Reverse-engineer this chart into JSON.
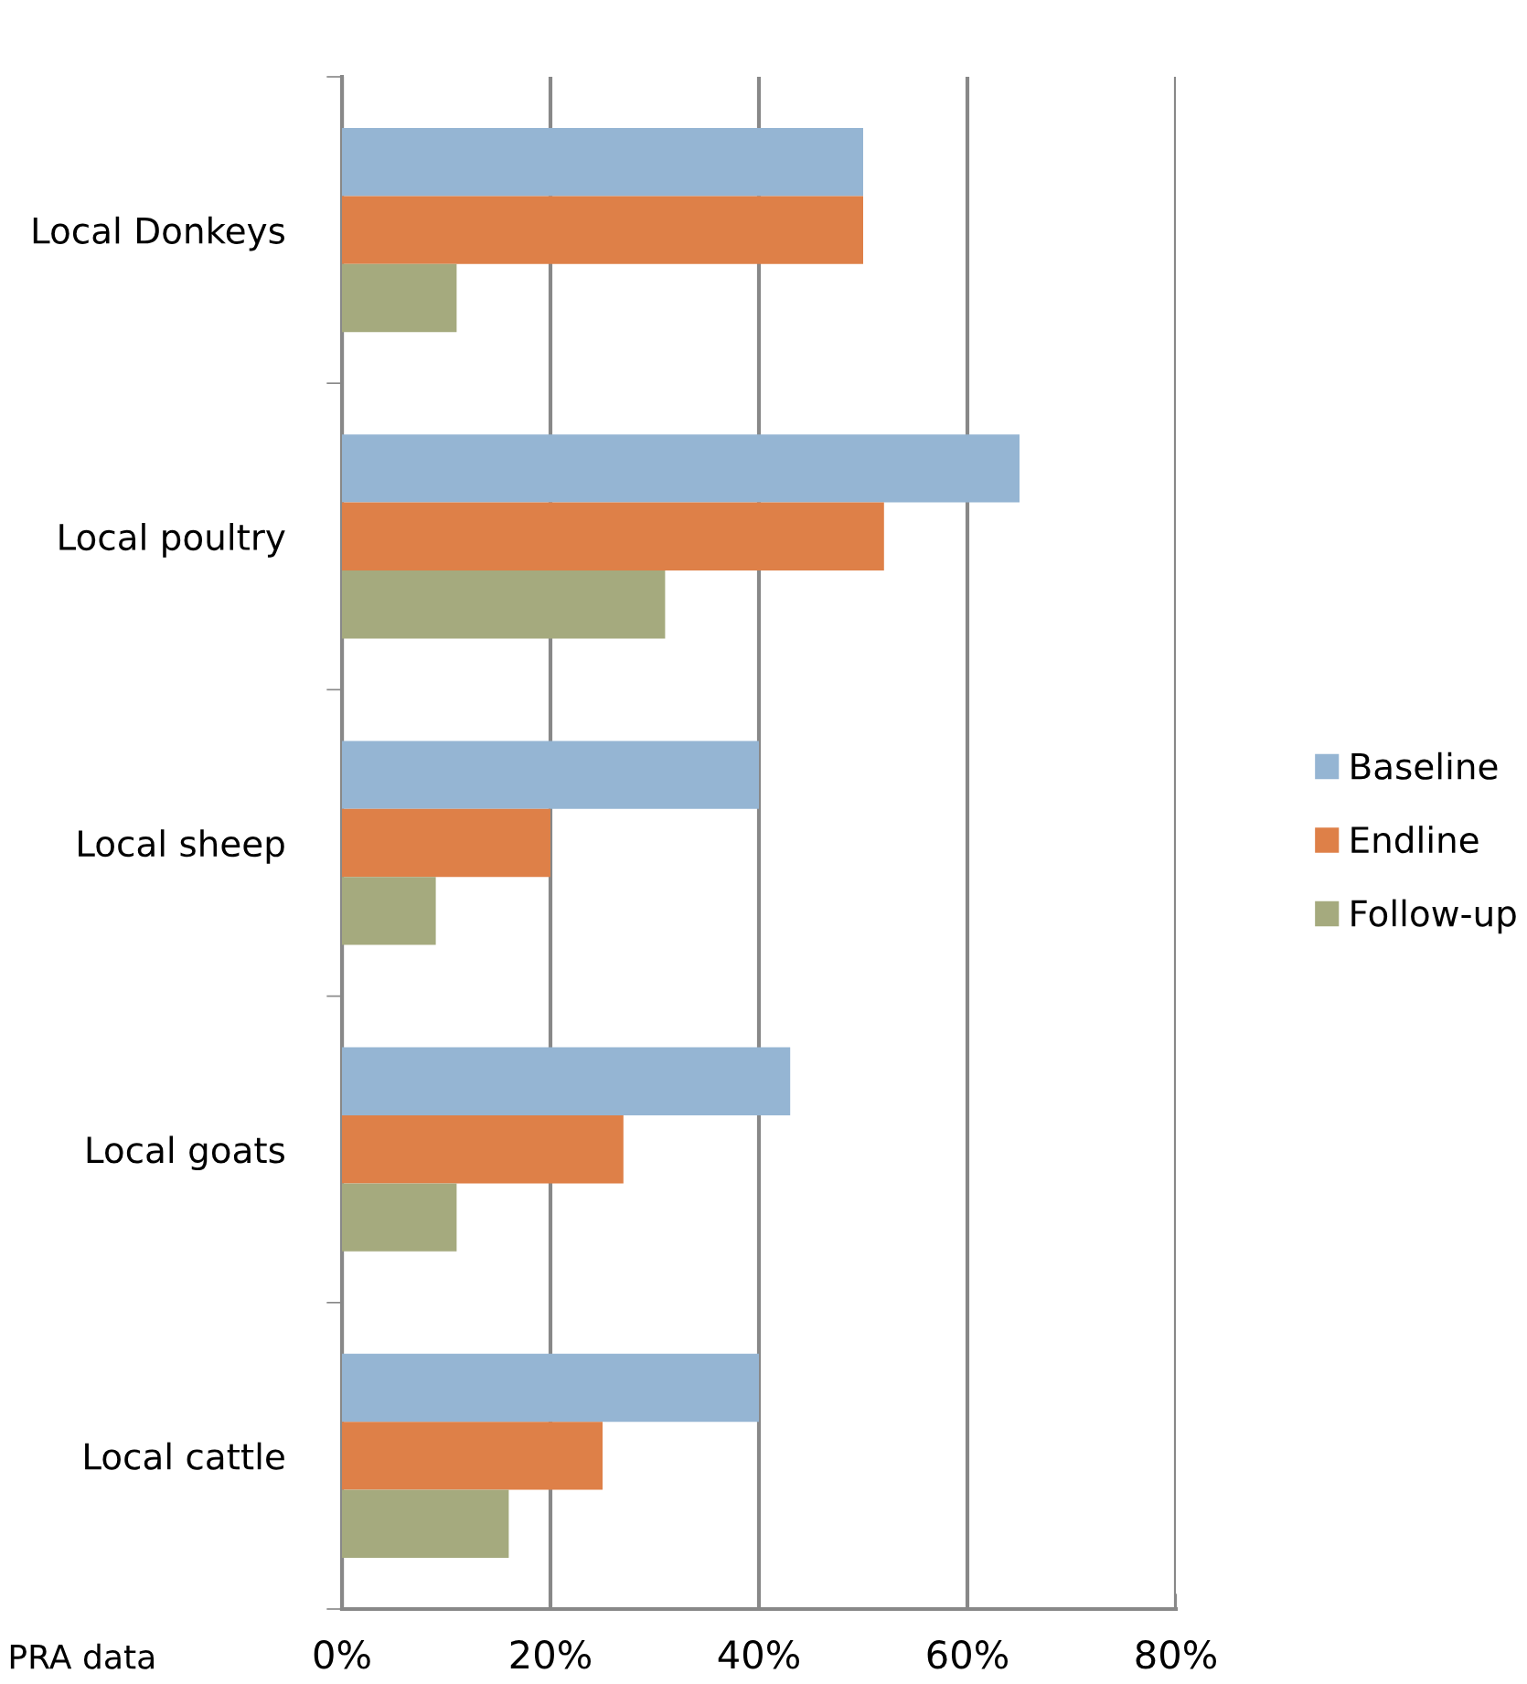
{
  "chart_data": {
    "type": "bar",
    "orientation": "horizontal",
    "categories": [
      "Local Donkeys",
      "Local poultry",
      "Local sheep",
      "Local goats",
      "Local cattle"
    ],
    "series": [
      {
        "name": "Baseline",
        "color": "#95b5d3",
        "values": [
          50,
          65,
          40,
          43,
          40
        ]
      },
      {
        "name": "Endline",
        "color": "#de8048",
        "values": [
          50,
          52,
          20,
          27,
          25
        ]
      },
      {
        "name": "Follow-up",
        "color": "#a5aa7e",
        "values": [
          11,
          31,
          9,
          11,
          16
        ]
      }
    ],
    "xlim": [
      0,
      80
    ],
    "xticks": [
      {
        "value": 0,
        "label": "0%"
      },
      {
        "value": 20,
        "label": "20%"
      },
      {
        "value": 40,
        "label": "40%"
      },
      {
        "value": 60,
        "label": "60%"
      },
      {
        "value": 80,
        "label": "80%"
      }
    ],
    "grid": "x",
    "legend": "right",
    "annotations": [
      "PRA data"
    ]
  }
}
